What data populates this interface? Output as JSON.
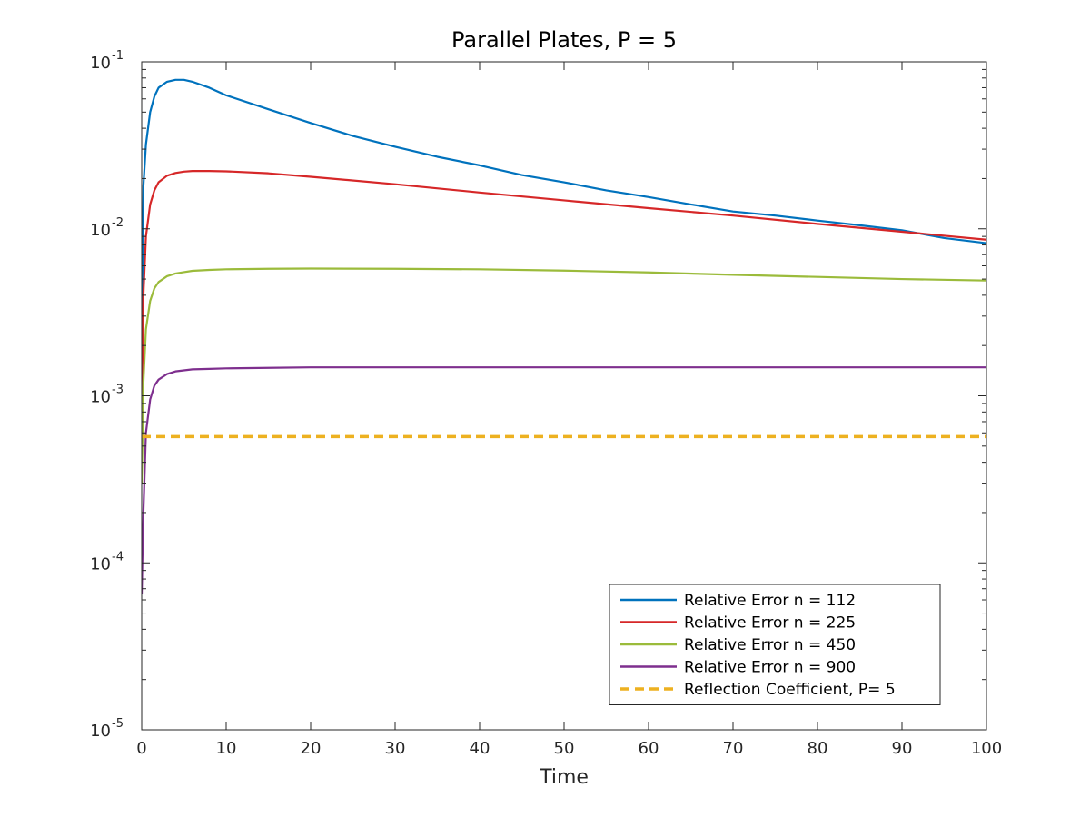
{
  "chart_data": {
    "type": "line",
    "title": "Parallel Plates, P = 5",
    "xlabel": "Time",
    "ylabel": "",
    "xlim": [
      0,
      100
    ],
    "ylim": [
      1e-05,
      0.1
    ],
    "yscale": "log",
    "grid": false,
    "legend_location": "bottom-right",
    "x_ticks": [
      0,
      10,
      20,
      30,
      40,
      50,
      60,
      70,
      80,
      90,
      100
    ],
    "x_tick_labels": [
      "0",
      "10",
      "20",
      "30",
      "40",
      "50",
      "60",
      "70",
      "80",
      "90",
      "100"
    ],
    "y_ticks": [
      1e-05,
      0.0001,
      0.001,
      0.01,
      0.1
    ],
    "y_tick_labels": [
      {
        "base": "10",
        "exp": "-5"
      },
      {
        "base": "10",
        "exp": "-4"
      },
      {
        "base": "10",
        "exp": "-3"
      },
      {
        "base": "10",
        "exp": "-2"
      },
      {
        "base": "10",
        "exp": "-1"
      }
    ],
    "series": [
      {
        "name": "Relative Error n = 112",
        "color": "#0072BD",
        "style": "solid",
        "x": [
          0,
          0.2,
          0.5,
          1,
          1.5,
          2,
          3,
          4,
          5,
          6,
          8,
          10,
          15,
          20,
          25,
          30,
          35,
          40,
          45,
          50,
          55,
          60,
          65,
          70,
          75,
          80,
          85,
          90,
          95,
          100
        ],
        "y": [
          0.0015,
          0.018,
          0.032,
          0.05,
          0.062,
          0.07,
          0.076,
          0.078,
          0.078,
          0.076,
          0.07,
          0.063,
          0.052,
          0.043,
          0.036,
          0.031,
          0.027,
          0.024,
          0.021,
          0.019,
          0.017,
          0.0155,
          0.014,
          0.0127,
          0.012,
          0.0112,
          0.0105,
          0.0098,
          0.0088,
          0.0082
        ]
      },
      {
        "name": "Relative Error n = 225",
        "color": "#D62728",
        "style": "solid",
        "x": [
          0,
          0.2,
          0.5,
          1,
          1.5,
          2,
          3,
          4,
          5,
          6,
          8,
          10,
          15,
          20,
          30,
          40,
          50,
          60,
          70,
          80,
          90,
          100
        ],
        "y": [
          0.0007,
          0.004,
          0.009,
          0.014,
          0.017,
          0.019,
          0.0208,
          0.0216,
          0.022,
          0.0222,
          0.0222,
          0.0221,
          0.0215,
          0.0205,
          0.0185,
          0.0165,
          0.0148,
          0.0133,
          0.012,
          0.0107,
          0.0096,
          0.0086
        ]
      },
      {
        "name": "Relative Error n = 450",
        "color": "#9BBB3B",
        "style": "solid",
        "x": [
          0,
          0.2,
          0.5,
          1,
          1.5,
          2,
          3,
          4,
          5,
          6,
          8,
          10,
          15,
          20,
          30,
          40,
          50,
          60,
          70,
          80,
          90,
          100
        ],
        "y": [
          0.0003,
          0.0012,
          0.0025,
          0.0037,
          0.0044,
          0.0048,
          0.0052,
          0.0054,
          0.0055,
          0.0056,
          0.00567,
          0.00572,
          0.00576,
          0.00578,
          0.00576,
          0.00572,
          0.00562,
          0.00548,
          0.0053,
          0.00515,
          0.005,
          0.0049
        ]
      },
      {
        "name": "Relative Error n = 900",
        "color": "#7E2F8E",
        "style": "solid",
        "x": [
          0,
          0.2,
          0.5,
          1,
          1.5,
          2,
          3,
          4,
          5,
          6,
          8,
          10,
          15,
          20,
          30,
          40,
          50,
          60,
          70,
          80,
          90,
          100
        ],
        "y": [
          6.5e-05,
          0.0002,
          0.0006,
          0.00095,
          0.00115,
          0.00125,
          0.00135,
          0.0014,
          0.00142,
          0.00144,
          0.00145,
          0.00146,
          0.00147,
          0.00148,
          0.00148,
          0.00148,
          0.00148,
          0.00148,
          0.00148,
          0.00148,
          0.00148,
          0.00148
        ]
      },
      {
        "name": "Reflection Coefficient, P= 5",
        "color": "#EDB120",
        "style": "dashed",
        "x": [
          0,
          100
        ],
        "y": [
          0.00057,
          0.00057
        ]
      }
    ]
  }
}
